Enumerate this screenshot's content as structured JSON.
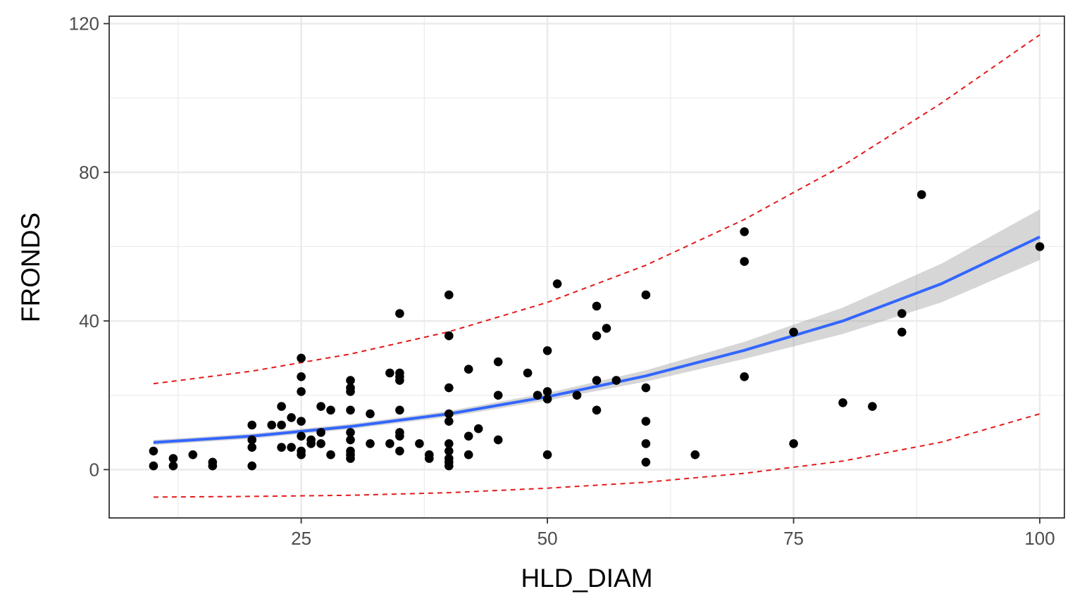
{
  "chart_data": {
    "type": "scatter",
    "xlabel": "HLD_DIAM",
    "ylabel": "FRONDS",
    "xlim": [
      5.5,
      102.5
    ],
    "ylim": [
      -13,
      122
    ],
    "x_ticks": [
      25,
      50,
      75,
      100
    ],
    "x_tick_labels": [
      "25",
      "50",
      "75",
      "100"
    ],
    "x_minor_ticks": [
      12.5,
      37.5,
      62.5,
      87.5
    ],
    "y_ticks": [
      0,
      40,
      80,
      120
    ],
    "y_tick_labels": [
      "0",
      "40",
      "80",
      "120"
    ],
    "y_minor_ticks": [
      20,
      60,
      100
    ],
    "grid": true,
    "colors": {
      "points": "#000000",
      "fit_line": "#3366ff",
      "confidence_band": "#999999",
      "prediction_bounds": "#e31a1c",
      "grid": "#ebebeb",
      "panel_border": "#333333"
    },
    "points": [
      [
        10,
        5
      ],
      [
        10,
        1
      ],
      [
        12,
        3
      ],
      [
        12,
        1
      ],
      [
        14,
        4
      ],
      [
        16,
        2
      ],
      [
        16,
        1
      ],
      [
        20,
        12
      ],
      [
        20,
        8
      ],
      [
        20,
        6
      ],
      [
        20,
        1
      ],
      [
        22,
        12
      ],
      [
        23,
        17
      ],
      [
        23,
        12
      ],
      [
        23,
        6
      ],
      [
        24,
        14
      ],
      [
        24,
        6
      ],
      [
        25,
        30
      ],
      [
        25,
        25
      ],
      [
        25,
        21
      ],
      [
        25,
        13
      ],
      [
        25,
        9
      ],
      [
        25,
        5
      ],
      [
        25,
        4
      ],
      [
        26,
        8
      ],
      [
        26,
        7
      ],
      [
        27,
        17
      ],
      [
        27,
        10
      ],
      [
        27,
        7
      ],
      [
        28,
        16
      ],
      [
        28,
        4
      ],
      [
        30,
        24
      ],
      [
        30,
        22
      ],
      [
        30,
        21
      ],
      [
        30,
        16
      ],
      [
        30,
        10
      ],
      [
        30,
        8
      ],
      [
        30,
        5
      ],
      [
        30,
        4
      ],
      [
        30,
        3
      ],
      [
        32,
        15
      ],
      [
        32,
        7
      ],
      [
        34,
        26
      ],
      [
        34,
        7
      ],
      [
        35,
        42
      ],
      [
        35,
        26
      ],
      [
        35,
        25
      ],
      [
        35,
        24
      ],
      [
        35,
        16
      ],
      [
        35,
        10
      ],
      [
        35,
        9
      ],
      [
        35,
        5
      ],
      [
        37,
        7
      ],
      [
        38,
        4
      ],
      [
        38,
        3
      ],
      [
        40,
        47
      ],
      [
        40,
        36
      ],
      [
        40,
        22
      ],
      [
        40,
        15
      ],
      [
        40,
        13
      ],
      [
        40,
        7
      ],
      [
        40,
        5
      ],
      [
        40,
        3
      ],
      [
        40,
        2
      ],
      [
        40,
        1
      ],
      [
        42,
        27
      ],
      [
        42,
        9
      ],
      [
        42,
        4
      ],
      [
        43,
        11
      ],
      [
        45,
        29
      ],
      [
        45,
        20
      ],
      [
        45,
        8
      ],
      [
        48,
        26
      ],
      [
        49,
        20
      ],
      [
        50,
        32
      ],
      [
        50,
        21
      ],
      [
        50,
        19
      ],
      [
        50,
        4
      ],
      [
        51,
        50
      ],
      [
        53,
        20
      ],
      [
        55,
        44
      ],
      [
        55,
        36
      ],
      [
        55,
        24
      ],
      [
        55,
        16
      ],
      [
        56,
        38
      ],
      [
        57,
        24
      ],
      [
        60,
        47
      ],
      [
        60,
        22
      ],
      [
        60,
        13
      ],
      [
        60,
        7
      ],
      [
        60,
        2
      ],
      [
        65,
        4
      ],
      [
        70,
        64
      ],
      [
        70,
        56
      ],
      [
        70,
        25
      ],
      [
        75,
        37
      ],
      [
        75,
        7
      ],
      [
        80,
        18
      ],
      [
        83,
        17
      ],
      [
        86,
        42
      ],
      [
        86,
        37
      ],
      [
        88,
        74
      ],
      [
        100,
        60
      ]
    ],
    "fit": {
      "x": [
        10,
        20,
        30,
        40,
        50,
        60,
        70,
        80,
        90,
        100
      ],
      "y": [
        7.3,
        9.0,
        11.6,
        15.0,
        19.6,
        25.2,
        32.1,
        40.0,
        50.0,
        62.6
      ],
      "lower": [
        6.6,
        8.3,
        10.9,
        14.2,
        18.6,
        23.7,
        29.8,
        36.5,
        45.0,
        56.4
      ],
      "upper": [
        8.0,
        9.7,
        12.3,
        15.8,
        20.6,
        26.7,
        34.4,
        43.6,
        55.4,
        70.0
      ]
    },
    "prediction_bounds": {
      "x": [
        10,
        20,
        30,
        40,
        50,
        60,
        70,
        80,
        90,
        100
      ],
      "lower": [
        -7.4,
        -7.2,
        -6.9,
        -6.2,
        -5.0,
        -3.4,
        -1.0,
        2.3,
        7.4,
        15.0
      ],
      "upper": [
        23.1,
        26.5,
        31.1,
        37.1,
        45.0,
        55.0,
        67.3,
        81.8,
        98.6,
        117.0
      ]
    }
  }
}
